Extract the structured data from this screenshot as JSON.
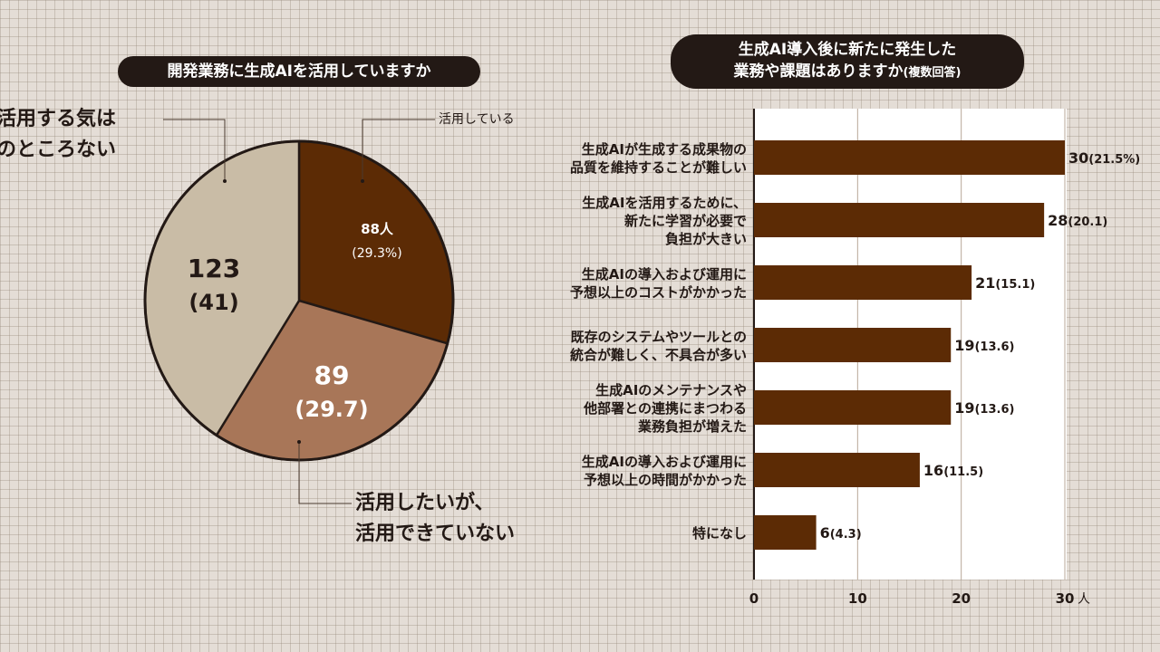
{
  "pie_title": "開発業務に生成AIを活用していますか",
  "bar_title_line1": "生成AI導入後に新たに発生した",
  "bar_title_line2": "業務や課題はありますか",
  "bar_title_suffix": "(複数回答)",
  "colors": {
    "dark_brown": "#5c2b05",
    "mid_brown": "#a87658",
    "beige": "#c9bca6",
    "outline": "#231915"
  },
  "chart_data": [
    {
      "type": "pie",
      "title": "開発業務に生成AIを活用していますか",
      "slices": [
        {
          "name": "活用している",
          "value": 88,
          "value_label": "88人",
          "percent_label": "(29.3%)",
          "color": "#5c2b05"
        },
        {
          "name": "活用したいが、活用できていない",
          "name_lines": [
            "活用したいが、",
            "活用できていない"
          ],
          "value": 89,
          "value_label": "89",
          "percent_label": "(29.7)",
          "color": "#a87658"
        },
        {
          "name": "活用する気は今のところない",
          "name_lines": [
            "活用する気は",
            "今のところない"
          ],
          "value": 123,
          "value_label": "123",
          "percent_label": "(41)",
          "color": "#c9bca6"
        }
      ]
    },
    {
      "type": "bar",
      "orientation": "horizontal",
      "title": "生成AI導入後に新たに発生した業務や課題はありますか(複数回答)",
      "xlim": [
        0,
        30
      ],
      "ticks": [
        0,
        10,
        20,
        30
      ],
      "tick_labels": [
        "0",
        "10",
        "20",
        "30"
      ],
      "unit": "人",
      "grid": true,
      "categories": [
        [
          "生成AIが生成する成果物の",
          "品質を維持することが難しい"
        ],
        [
          "生成AIを活用するために、",
          "新たに学習が必要で",
          "負担が大きい"
        ],
        [
          "生成AIの導入および運用に",
          "予想以上のコストがかかった"
        ],
        [
          "既存のシステムやツールとの",
          "統合が難しく、不具合が多い"
        ],
        [
          "生成AIのメンテナンスや",
          "他部署との連携にまつわる",
          "業務負担が増えた"
        ],
        [
          "生成AIの導入および運用に",
          "予想以上の時間がかかった"
        ],
        [
          "特になし"
        ]
      ],
      "values": [
        30,
        28,
        21,
        19,
        19,
        16,
        6
      ],
      "value_labels": [
        "30",
        "28",
        "21",
        "19",
        "19",
        "16",
        "6"
      ],
      "percent_labels": [
        "(21.5%)",
        "(20.1)",
        "(15.1)",
        "(13.6)",
        "(13.6)",
        "(11.5)",
        "(4.3)"
      ]
    }
  ]
}
